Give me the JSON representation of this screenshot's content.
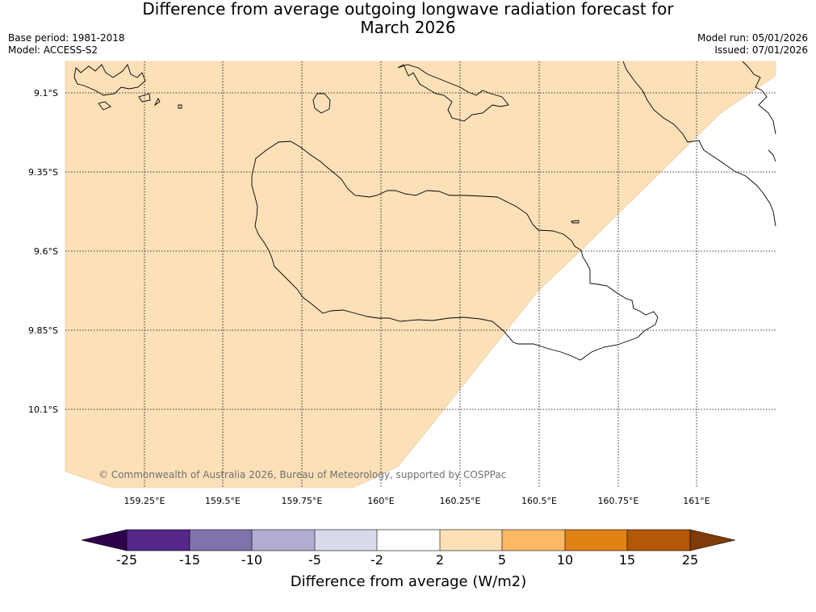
{
  "title_line1": "Difference from average outgoing longwave radiation forecast for",
  "title_line2": "March 2026",
  "base_period": "Base period: 1981-2018",
  "model": "Model: ACCESS-S2",
  "model_run": "Model run: 05/01/2026",
  "issued": "Issued: 07/01/2026",
  "copyright": "© Commonwealth of Australia 2026, Bureau of Meteorology, supported by COSPPac",
  "map": {
    "lon_labels": [
      "159.25°E",
      "159.5°E",
      "159.75°E",
      "160°E",
      "160.25°E",
      "160.5°E",
      "160.75°E",
      "161°E"
    ],
    "lat_labels": [
      "9.1°S",
      "9.35°S",
      "9.6°S",
      "9.85°S",
      "10.1°S"
    ],
    "fill_color": "#fce0b8",
    "fill_category": "2 to 5"
  },
  "colorbar": {
    "title": "Difference from average (W/m2)",
    "tick_labels": [
      "-25",
      "-15",
      "-10",
      "-5",
      "-2",
      "2",
      "5",
      "10",
      "15",
      "25"
    ],
    "under_color": "#2d004b",
    "over_color": "#7f3b08",
    "colors": [
      "#542788",
      "#8073ac",
      "#b2abd2",
      "#d8daeb",
      "#ffffff",
      "#fee0b6",
      "#fdb863",
      "#e08214",
      "#b35806"
    ]
  }
}
